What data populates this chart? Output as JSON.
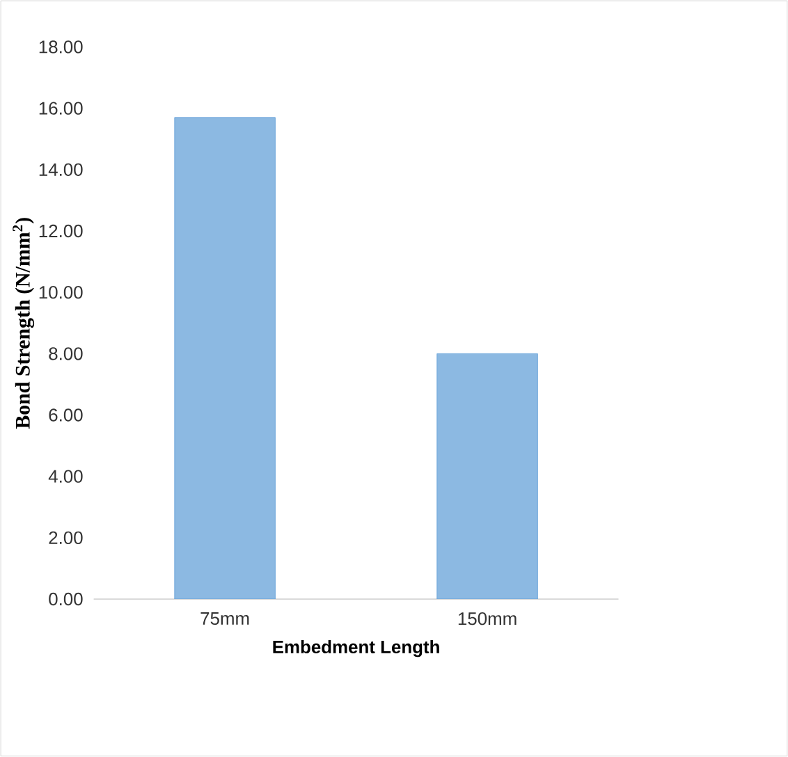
{
  "chart_data": {
    "type": "bar",
    "xlabel": "Embedment Length",
    "ylabel": "Bond Strength (N/mm$^{2}$)",
    "categories": [
      "75mm",
      "150mm"
    ],
    "values": [
      15.7,
      8.0
    ],
    "color": "#5b9bd5",
    "ylim": [
      0,
      18
    ],
    "yticks": [
      {
        "value": 0,
        "label": "0.00"
      },
      {
        "value": 2,
        "label": "2.00"
      },
      {
        "value": 4,
        "label": "4.00"
      },
      {
        "value": 6,
        "label": "6.00"
      },
      {
        "value": 8,
        "label": "8.00"
      },
      {
        "value": 10,
        "label": "10.00"
      },
      {
        "value": 12,
        "label": "12.00"
      },
      {
        "value": 14,
        "label": "14.00"
      },
      {
        "value": 16,
        "label": "16.00"
      },
      {
        "value": 18,
        "label": "18.00"
      }
    ],
    "legend": false
  }
}
